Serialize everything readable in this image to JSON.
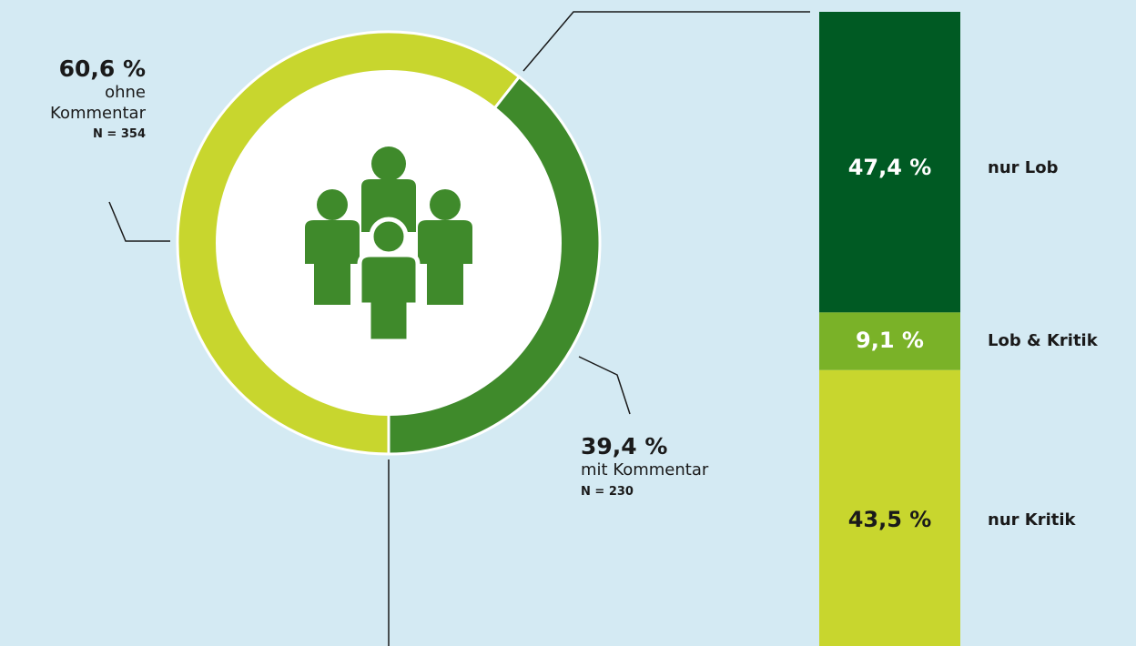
{
  "chart_data": [
    {
      "type": "pie",
      "categories": [
        "ohne Kommentar",
        "mit Kommentar"
      ],
      "values": [
        60.6,
        39.4
      ],
      "value_labels": [
        "60,6 %",
        "39,4 %"
      ],
      "annotations": [
        "N = 354",
        "N = 230"
      ],
      "colors": [
        "#c8d62e",
        "#3f8a2b"
      ]
    },
    {
      "type": "bar",
      "stacked": true,
      "ylim": [
        0,
        100
      ],
      "series": [
        {
          "name": "nur Lob",
          "color": "#005a23",
          "values": [
            47.4
          ],
          "value_labels": [
            "47,4 %"
          ]
        },
        {
          "name": "Lob & Kritik",
          "color": "#7ab228",
          "values": [
            9.1
          ],
          "value_labels": [
            "9,1 %"
          ]
        },
        {
          "name": "nur Kritik",
          "color": "#c8d62e",
          "values": [
            43.5
          ],
          "value_labels": [
            "43,5 %"
          ]
        }
      ]
    }
  ]
}
